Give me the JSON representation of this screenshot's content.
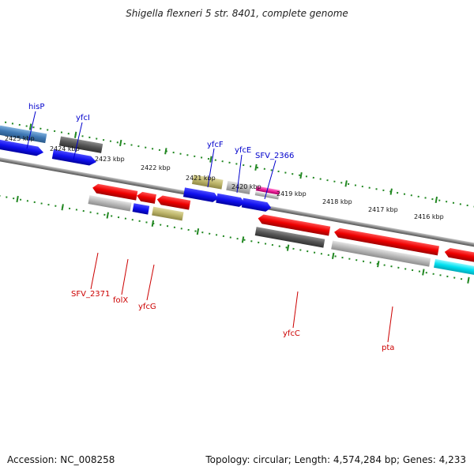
{
  "title": "Shigella flexneri 5 str. 8401, complete genome",
  "footer": {
    "accession": "Accession: NC_008258",
    "summary": "Topology: circular; Length: 4,574,284 bp; Genes: 4,233"
  },
  "ruler_labels": [
    "2425 kbp",
    "2424 kbp",
    "2423 kbp",
    "2422 kbp",
    "2421 kbp",
    "2420 kbp",
    "2419 kbp",
    "2418 kbp",
    "2417 kbp",
    "2416 kbp"
  ],
  "top_genes": [
    "hisP",
    "yfcI",
    "yfcF",
    "yfcE",
    "SFV_2366"
  ],
  "bottom_genes": [
    "SFV_2371",
    "folX",
    "yfcG",
    "yfcC",
    "pta"
  ],
  "colors": {
    "forward_label": "#0000cc",
    "reverse_label": "#cc0000",
    "ruler_dots": "#228822"
  }
}
